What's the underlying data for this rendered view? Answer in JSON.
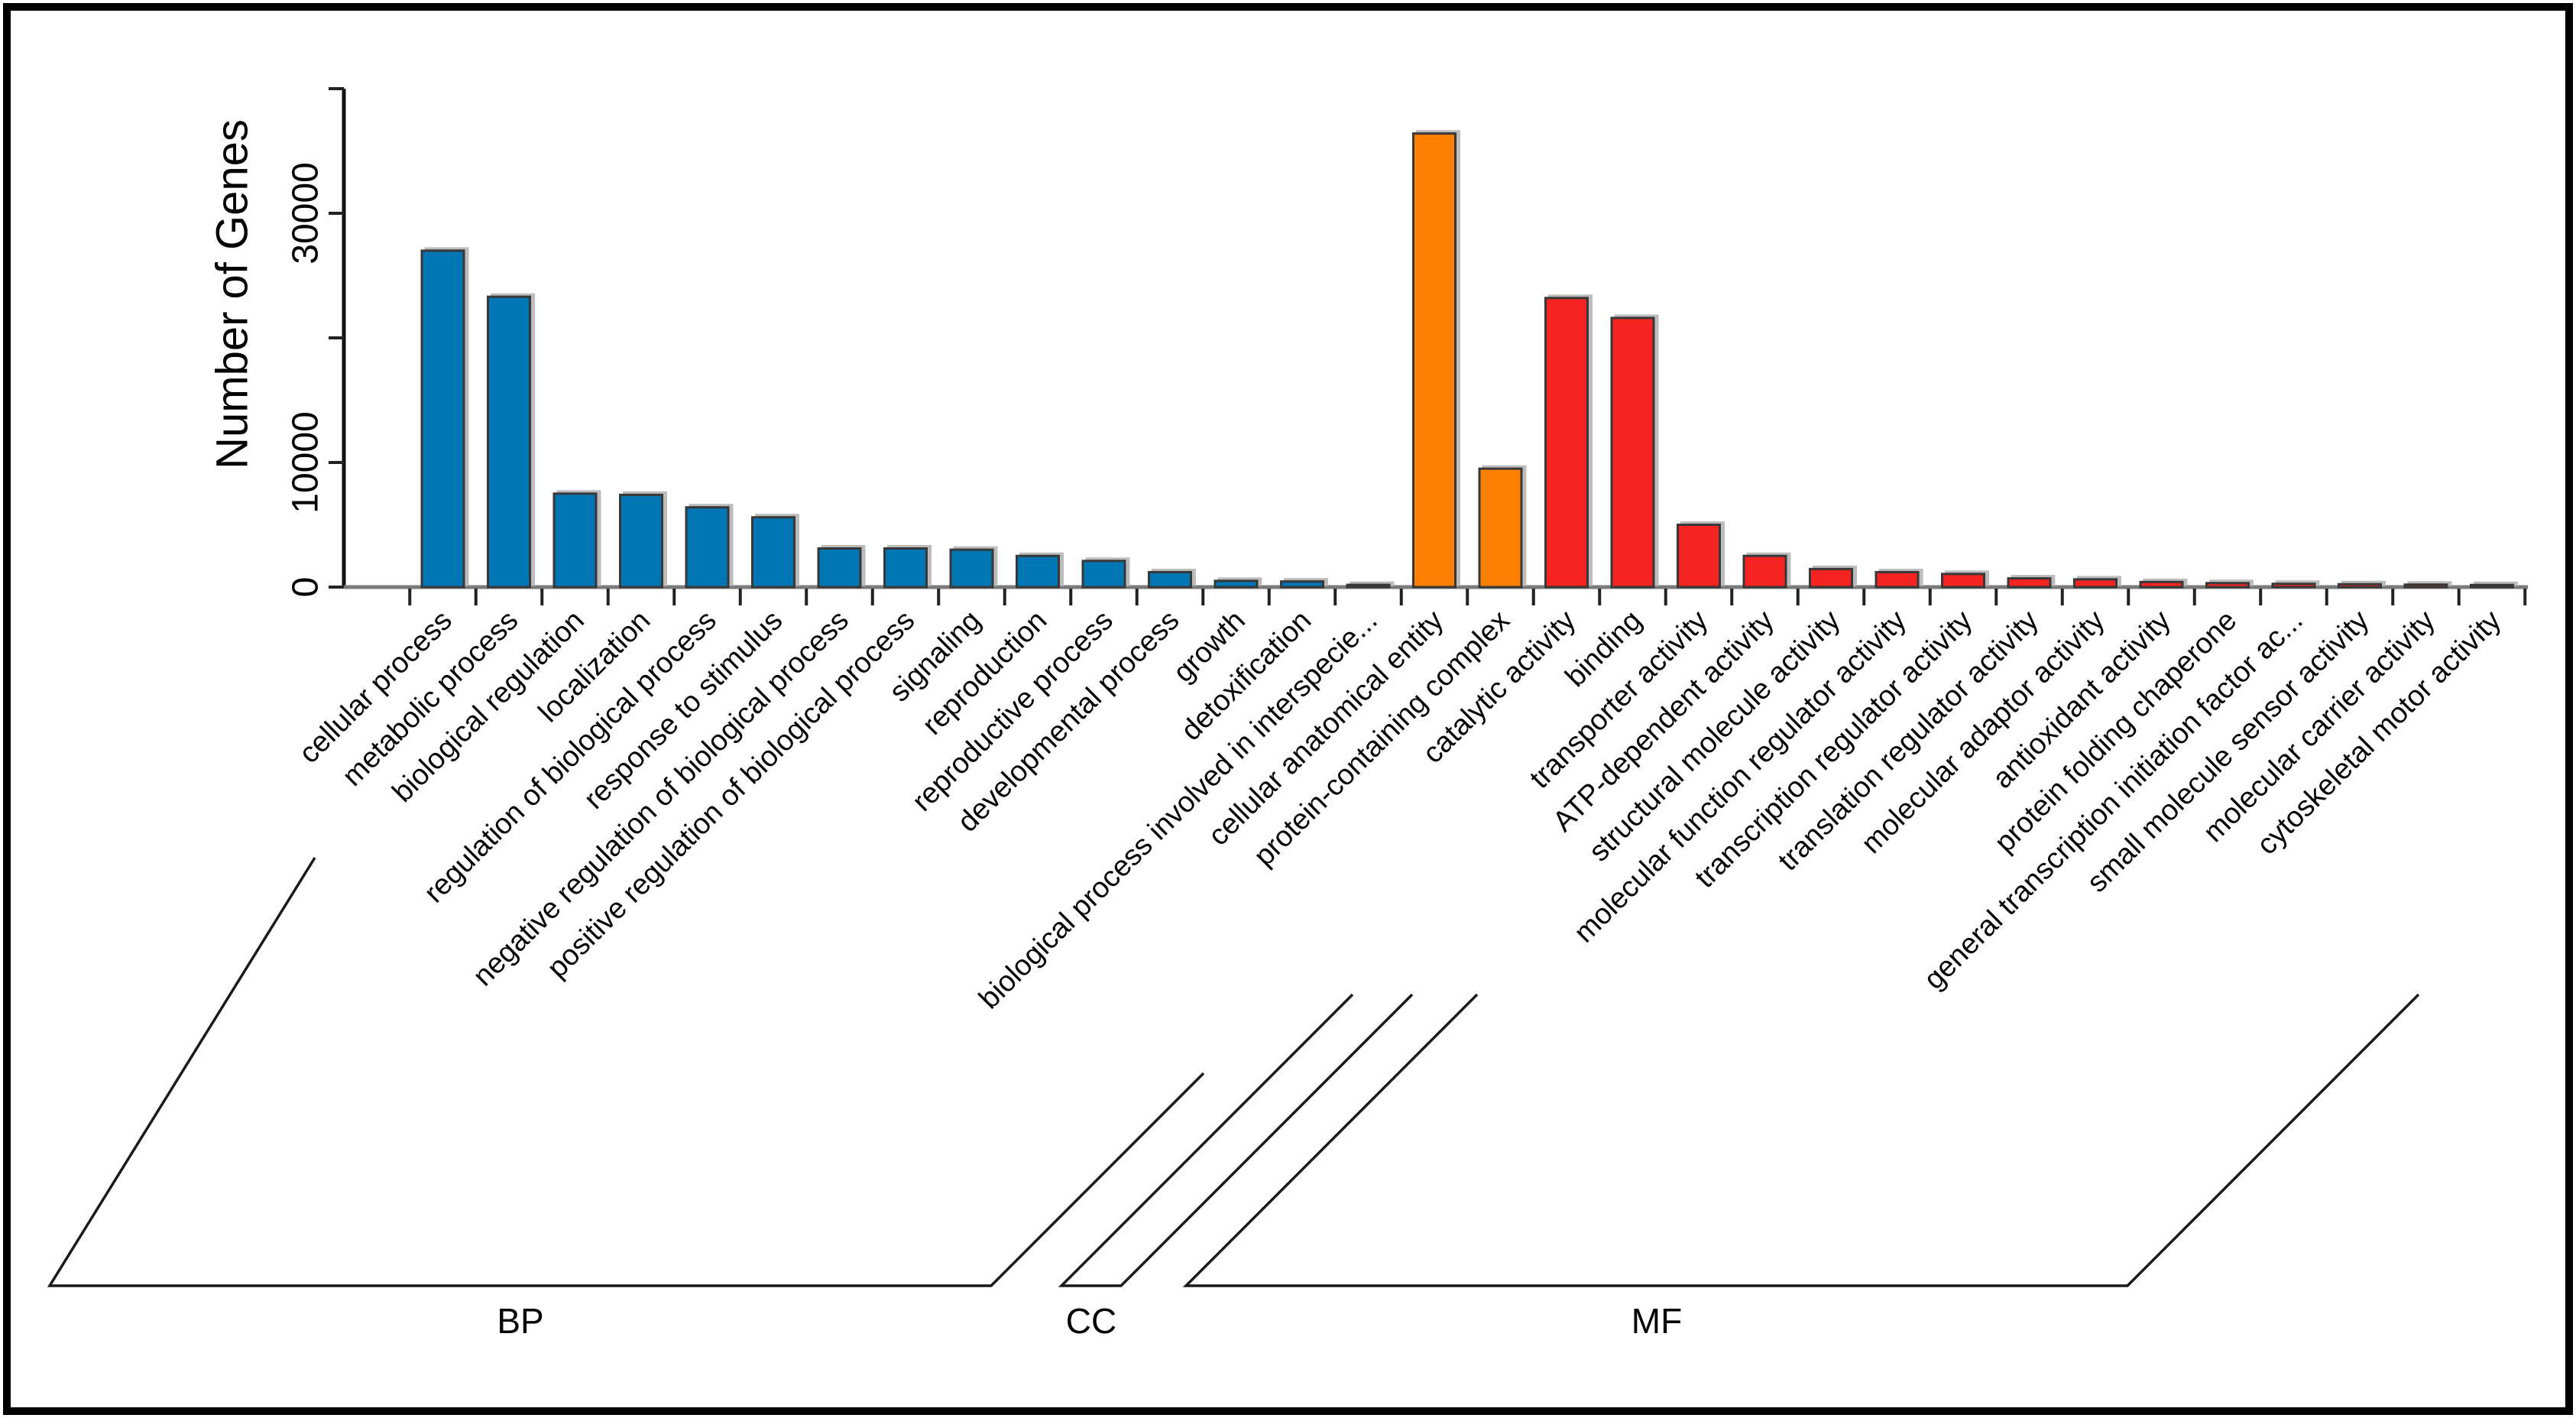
{
  "figure": {
    "background_color": "#ffffff",
    "border_color": "#000000"
  },
  "chart_data": {
    "type": "bar",
    "title": "",
    "xlabel": "",
    "ylabel": "Number of Genes",
    "ylim": [
      0,
      40000
    ],
    "grid": false,
    "legend": "none",
    "yticks": [
      {
        "value": 0,
        "label": "0"
      },
      {
        "value": 10000,
        "label": "10000"
      },
      {
        "value": 20000,
        "label": ""
      },
      {
        "value": 30000,
        "label": "30000"
      },
      {
        "value": 40000,
        "label": ""
      }
    ],
    "groups": [
      {
        "id": "BP",
        "label": "BP",
        "color": "#0077b4"
      },
      {
        "id": "CC",
        "label": "CC",
        "color": "#ff8000"
      },
      {
        "id": "MF",
        "label": "MF",
        "color": "#f52423"
      }
    ],
    "bars": [
      {
        "category": "cellular process",
        "group": "BP",
        "value": 27000
      },
      {
        "category": "metabolic process",
        "group": "BP",
        "value": 23300
      },
      {
        "category": "biological regulation",
        "group": "BP",
        "value": 7500
      },
      {
        "category": "localization",
        "group": "BP",
        "value": 7400
      },
      {
        "category": "regulation of biological process",
        "group": "BP",
        "value": 6400
      },
      {
        "category": "response to stimulus",
        "group": "BP",
        "value": 5600
      },
      {
        "category": "negative regulation of biological process",
        "group": "BP",
        "value": 3100
      },
      {
        "category": "positive regulation of biological process",
        "group": "BP",
        "value": 3100
      },
      {
        "category": "signaling",
        "group": "BP",
        "value": 3000
      },
      {
        "category": "reproduction",
        "group": "BP",
        "value": 2500
      },
      {
        "category": "reproductive process",
        "group": "BP",
        "value": 2100
      },
      {
        "category": "developmental process",
        "group": "BP",
        "value": 1200
      },
      {
        "category": "growth",
        "group": "BP",
        "value": 500
      },
      {
        "category": "detoxification",
        "group": "BP",
        "value": 450
      },
      {
        "category": "biological process involved in interspecie...",
        "group": "BP",
        "value": 180
      },
      {
        "category": "cellular anatomical entity",
        "group": "CC",
        "value": 36400
      },
      {
        "category": "protein-containing complex",
        "group": "CC",
        "value": 9500
      },
      {
        "category": "catalytic activity",
        "group": "MF",
        "value": 23200
      },
      {
        "category": "binding",
        "group": "MF",
        "value": 21600
      },
      {
        "category": "transporter activity",
        "group": "MF",
        "value": 5000
      },
      {
        "category": "ATP-dependent activity",
        "group": "MF",
        "value": 2500
      },
      {
        "category": "structural molecule activity",
        "group": "MF",
        "value": 1450
      },
      {
        "category": "molecular function regulator activity",
        "group": "MF",
        "value": 1200
      },
      {
        "category": "transcription regulator activity",
        "group": "MF",
        "value": 1050
      },
      {
        "category": "translation regulator activity",
        "group": "MF",
        "value": 700
      },
      {
        "category": "molecular adaptor activity",
        "group": "MF",
        "value": 620
      },
      {
        "category": "antioxidant activity",
        "group": "MF",
        "value": 410
      },
      {
        "category": "protein folding chaperone",
        "group": "MF",
        "value": 320
      },
      {
        "category": "general transcription initiation factor ac...",
        "group": "MF",
        "value": 260
      },
      {
        "category": "small molecule sensor activity",
        "group": "MF",
        "value": 230
      },
      {
        "category": "molecular carrier activity",
        "group": "MF",
        "value": 200
      },
      {
        "category": "cytoskeletal motor activity",
        "group": "MF",
        "value": 170
      }
    ]
  }
}
